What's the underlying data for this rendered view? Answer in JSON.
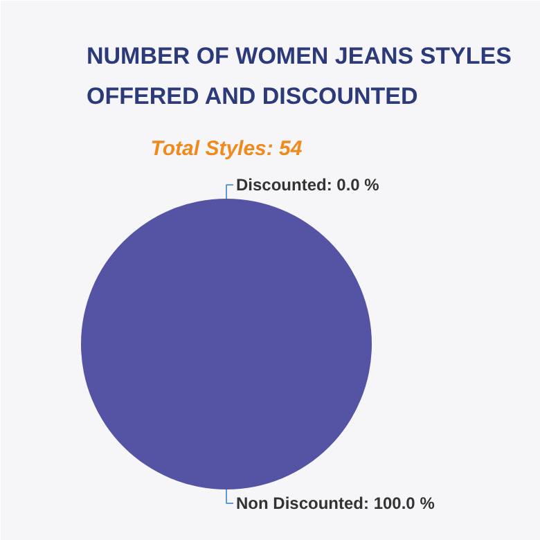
{
  "chart_data": {
    "type": "pie",
    "title": "NUMBER OF WOMEN JEANS STYLES\nOFFERED AND DISCOUNTED",
    "subtitle": "Total Styles: 54",
    "categories": [
      "Discounted",
      "Non Discounted"
    ],
    "values": [
      0,
      100
    ],
    "colors": [
      "#5553a3",
      "#5553a3"
    ],
    "value_labels": [
      "0.0 %",
      "100.0 %"
    ]
  }
}
